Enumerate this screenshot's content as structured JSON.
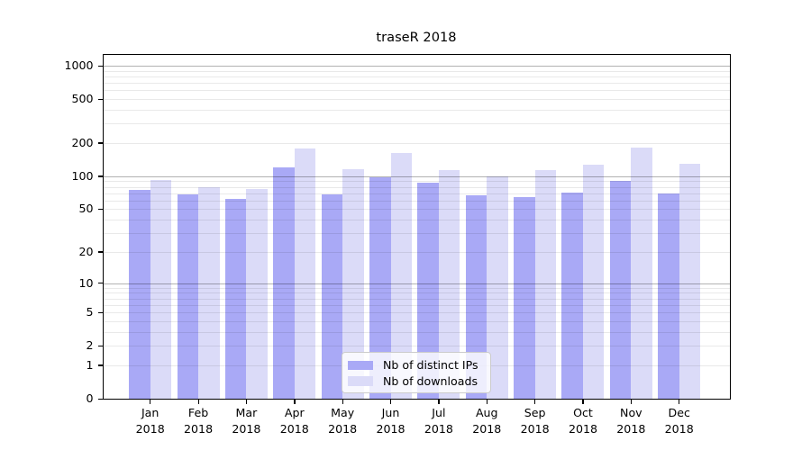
{
  "chart_data": {
    "type": "bar",
    "title": "traseR 2018",
    "categories": [
      "Jan",
      "Feb",
      "Mar",
      "Apr",
      "May",
      "Jun",
      "Jul",
      "Aug",
      "Sep",
      "Oct",
      "Nov",
      "Dec"
    ],
    "category_year": "2018",
    "series": [
      {
        "name": "Nb of distinct IPs",
        "color": "#a9a9f6",
        "values": [
          75,
          68,
          62,
          120,
          68,
          97,
          87,
          67,
          65,
          71,
          90,
          70
        ]
      },
      {
        "name": "Nb of downloads",
        "color": "#dbdbf8",
        "values": [
          92,
          80,
          76,
          180,
          115,
          164,
          114,
          99,
          113,
          127,
          181,
          130
        ]
      }
    ],
    "yscale": "log10(value+1)",
    "yticks": [
      1000,
      500,
      200,
      100,
      50,
      20,
      10,
      5,
      2,
      1,
      0
    ],
    "ylim": [
      0,
      1500
    ],
    "grid": true,
    "legend_position": "bottom-center",
    "colors": {
      "major_gridline": "#b3b3b3",
      "minor_gridline": "#ebebeb",
      "axis": "#000000",
      "background": "#ffffff"
    }
  }
}
